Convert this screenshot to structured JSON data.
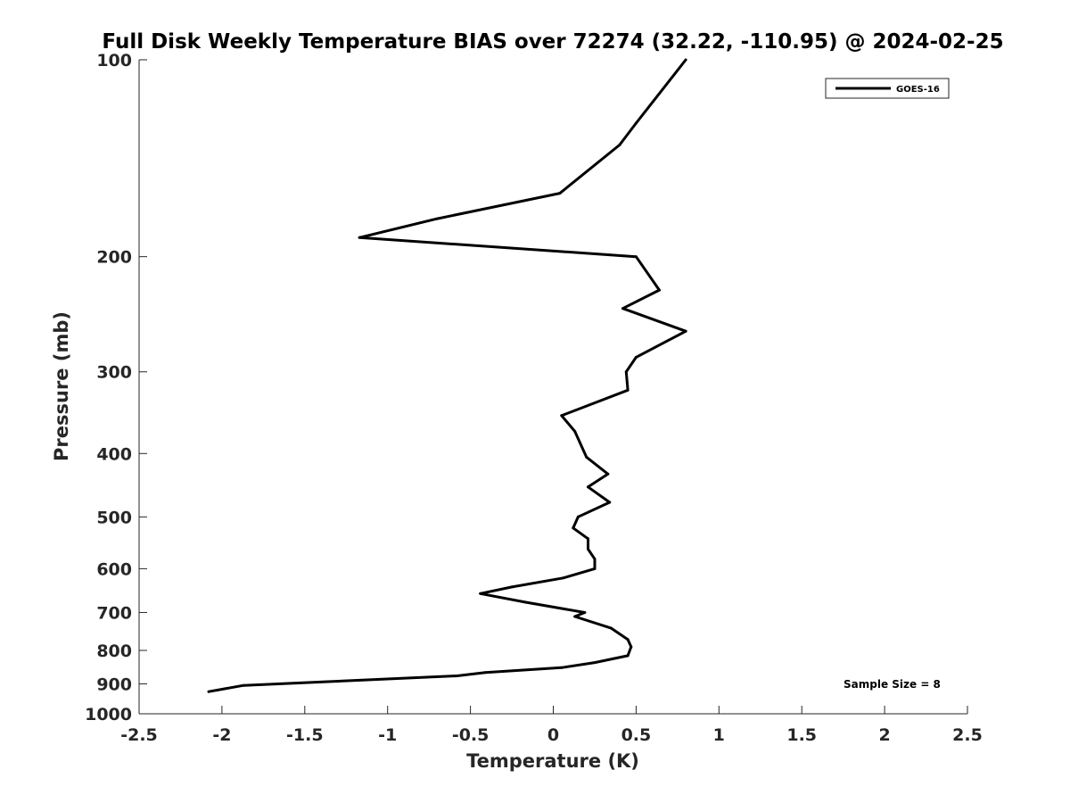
{
  "chart_data": {
    "type": "line",
    "title": "Full Disk Weekly Temperature BIAS over 72274 (32.22, -110.95) @ 2024-02-25",
    "xlabel": "Temperature (K)",
    "ylabel": "Pressure (mb)",
    "xlim": [
      -2.5,
      2.5
    ],
    "ylim": [
      1000,
      100
    ],
    "yscale": "log",
    "y_reversed": true,
    "grid": false,
    "legend_position": "top-right",
    "x_ticks": [
      "-2.5",
      "-2",
      "-1.5",
      "-1",
      "-0.5",
      "0",
      "0.5",
      "1",
      "1.5",
      "2",
      "2.5"
    ],
    "y_ticks": [
      "100",
      "200",
      "300",
      "400",
      "500",
      "600",
      "700",
      "800",
      "900",
      "1000"
    ],
    "series": [
      {
        "name": "GOES-16",
        "color": "#000000",
        "points": [
          {
            "x": 0.8,
            "p": 100
          },
          {
            "x": 0.5,
            "p": 125
          },
          {
            "x": 0.4,
            "p": 135
          },
          {
            "x": 0.04,
            "p": 160
          },
          {
            "x": -0.7,
            "p": 175
          },
          {
            "x": -1.17,
            "p": 187
          },
          {
            "x": 0.5,
            "p": 200
          },
          {
            "x": 0.64,
            "p": 225
          },
          {
            "x": 0.42,
            "p": 240
          },
          {
            "x": 0.8,
            "p": 260
          },
          {
            "x": 0.5,
            "p": 285
          },
          {
            "x": 0.44,
            "p": 300
          },
          {
            "x": 0.45,
            "p": 320
          },
          {
            "x": 0.05,
            "p": 350
          },
          {
            "x": 0.13,
            "p": 370
          },
          {
            "x": 0.2,
            "p": 405
          },
          {
            "x": 0.33,
            "p": 430
          },
          {
            "x": 0.21,
            "p": 450
          },
          {
            "x": 0.34,
            "p": 475
          },
          {
            "x": 0.15,
            "p": 500
          },
          {
            "x": 0.12,
            "p": 520
          },
          {
            "x": 0.21,
            "p": 540
          },
          {
            "x": 0.21,
            "p": 560
          },
          {
            "x": 0.25,
            "p": 580
          },
          {
            "x": 0.25,
            "p": 600
          },
          {
            "x": 0.06,
            "p": 620
          },
          {
            "x": -0.25,
            "p": 640
          },
          {
            "x": -0.44,
            "p": 655
          },
          {
            "x": -0.17,
            "p": 675
          },
          {
            "x": 0.19,
            "p": 700
          },
          {
            "x": 0.13,
            "p": 710
          },
          {
            "x": 0.35,
            "p": 740
          },
          {
            "x": 0.45,
            "p": 770
          },
          {
            "x": 0.47,
            "p": 790
          },
          {
            "x": 0.45,
            "p": 815
          },
          {
            "x": 0.25,
            "p": 835
          },
          {
            "x": 0.05,
            "p": 850
          },
          {
            "x": -0.41,
            "p": 865
          },
          {
            "x": -0.58,
            "p": 875
          },
          {
            "x": -1.87,
            "p": 905
          },
          {
            "x": -2.08,
            "p": 925
          }
        ]
      }
    ],
    "annotations": [
      "Sample Size = 8"
    ]
  }
}
